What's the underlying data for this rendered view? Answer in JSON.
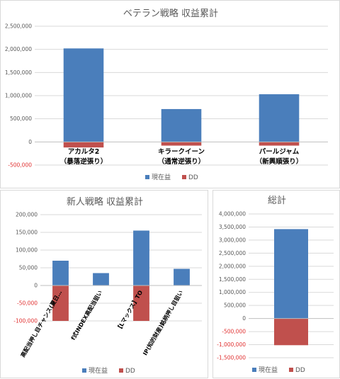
{
  "colors": {
    "profit": "#4a7ebb",
    "dd": "#c0504d"
  },
  "chart_data": [
    {
      "type": "bar",
      "title": "ベテラン戦略 収益累計",
      "categories": [
        [
          "アカルタ2",
          "（暴落逆張り）"
        ],
        [
          "キラークイーン",
          "（通常逆張り）"
        ],
        [
          "パールジャム",
          "（新興順張り）"
        ]
      ],
      "series": [
        {
          "name": "現在益",
          "values": [
            2020000,
            710000,
            1030000
          ]
        },
        {
          "name": "DD",
          "values": [
            -120000,
            -80000,
            -80000
          ]
        }
      ],
      "yticks": [
        "2,500,000",
        "2,000,000",
        "1,500,000",
        "1,000,000",
        "500,000",
        "0",
        "-500,000"
      ],
      "ylim": [
        -500000,
        2500000
      ],
      "legend": "bottom"
    },
    {
      "type": "bar",
      "title": "新人戦略 収益累計",
      "categories": [
        "高配当押し目チャンス(夏日…",
        "f式INDEX高配当狙い",
        "【Lマックス】TO",
        "IP(知的財産)銘柄押し目狙い"
      ],
      "series": [
        {
          "name": "現在益",
          "values": [
            70000,
            35000,
            155000,
            47000
          ]
        },
        {
          "name": "DD",
          "values": [
            -100000,
            0,
            -100000,
            0
          ]
        }
      ],
      "yticks": [
        "200,000",
        "150,000",
        "100,000",
        "50,000",
        "0",
        "-50,000",
        "-100,000"
      ],
      "ylim": [
        -100000,
        200000
      ],
      "legend": "bottom"
    },
    {
      "type": "bar",
      "title": "総計",
      "categories": [
        ""
      ],
      "series": [
        {
          "name": "現在益",
          "values": [
            3420000
          ]
        },
        {
          "name": "DD",
          "values": [
            -1020000
          ]
        }
      ],
      "yticks": [
        "4,000,000",
        "3,500,000",
        "3,000,000",
        "2,500,000",
        "2,000,000",
        "1,500,000",
        "1,000,000",
        "500,000",
        "0",
        "-500,000",
        "-1,000,000",
        "-1,500,000"
      ],
      "ylim": [
        -1500000,
        4000000
      ],
      "legend": "bottom"
    }
  ]
}
